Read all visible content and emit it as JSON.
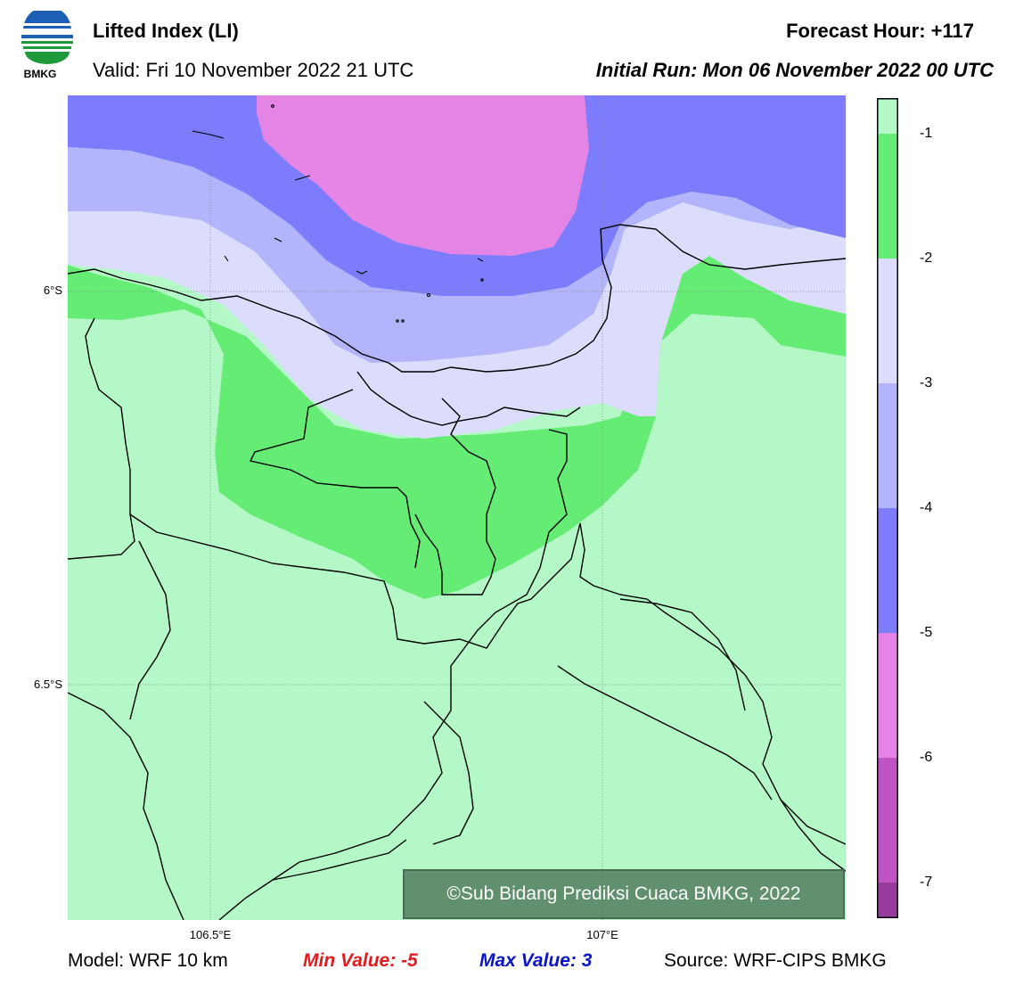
{
  "header": {
    "title": "Lifted Index (LI)",
    "valid": "Valid: Fri 10 November 2022 21 UTC",
    "forecast_hour": "Forecast Hour: +117",
    "initial_run": "Initial Run: Mon 06 November 2022 00 UTC",
    "logo_text": "BMKG"
  },
  "axes": {
    "lat_labels": [
      "6°S",
      "6.5°S"
    ],
    "lon_labels": [
      "106.5°E",
      "107°E"
    ]
  },
  "colorbar": {
    "ticks": [
      "-1",
      "-2",
      "-3",
      "-4",
      "-5",
      "-6",
      "-7"
    ],
    "colors": [
      "#b4f8c8",
      "#64ec74",
      "#dcdcfc",
      "#b4b4fc",
      "#7c7cfc",
      "#e484e4",
      "#c054c4",
      "#963c9c"
    ]
  },
  "footer": {
    "model": "Model: WRF 10 km",
    "min_value": "Min Value: -5",
    "max_value": "Max Value: 3",
    "source": "Source: WRF-CIPS BMKG"
  },
  "credit": "©Sub Bidang Prediksi Cuaca BMKG, 2022",
  "colors": {
    "light_green": "#b4f8c8",
    "green": "#64ec74",
    "pale_lavender": "#dcdcfc",
    "lavender": "#b4b4fc",
    "blue": "#7c7cfc",
    "pink": "#e484e4"
  }
}
